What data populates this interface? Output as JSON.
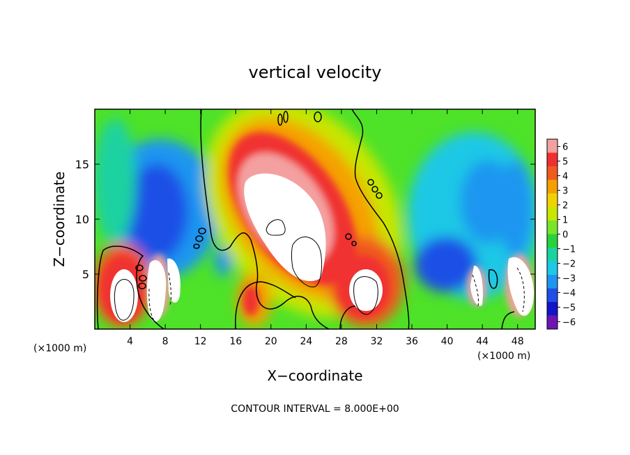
{
  "chart_data": {
    "type": "heatmap",
    "title": "vertical velocity",
    "xlabel": "X−coordinate",
    "ylabel": "Z−coordinate",
    "x_unit_left": "(×1000 m)",
    "x_unit_right": "(×1000 m)",
    "xlim": [
      0,
      50
    ],
    "ylim": [
      0,
      20
    ],
    "x_ticks": [
      4,
      8,
      12,
      16,
      20,
      24,
      28,
      32,
      36,
      40,
      44,
      48
    ],
    "y_ticks": [
      5,
      10,
      15
    ],
    "colorbar": {
      "min": -6,
      "max": 6,
      "tick_labels": [
        "6",
        "5",
        "4",
        "3",
        "2",
        "1",
        "0",
        "−1",
        "−2",
        "−3",
        "−4",
        "−5",
        "−6"
      ],
      "colors": [
        "#f4a0a0",
        "#f03030",
        "#f05a1e",
        "#f5a000",
        "#f0d200",
        "#c8e600",
        "#78e628",
        "#28d23c",
        "#1ed2a0",
        "#1ec8e6",
        "#1e96f0",
        "#1e50e6",
        "#1414c8",
        "#6e14b4"
      ]
    },
    "features": [
      {
        "kind": "updraft",
        "x": 3.0,
        "z": 2.9,
        "peak": 10
      },
      {
        "kind": "updraft",
        "x": 6.5,
        "z": 3.1,
        "peak": 9
      },
      {
        "kind": "updraft",
        "x": 9.0,
        "z": 3.5,
        "peak": 8
      },
      {
        "kind": "updraft",
        "x": 22.5,
        "z": 10.0,
        "peak": 14
      },
      {
        "kind": "updraft",
        "x": 30.5,
        "z": 3.3,
        "peak": 12
      },
      {
        "kind": "updraft",
        "x": 43.5,
        "z": 3.5,
        "peak": 8
      },
      {
        "kind": "updraft",
        "x": 48.0,
        "z": 4.0,
        "peak": 8
      },
      {
        "kind": "downdraft",
        "x": 8.5,
        "z": 10.0,
        "peak": -5
      },
      {
        "kind": "downdraft",
        "x": 43.0,
        "z": 10.0,
        "peak": -4
      },
      {
        "kind": "downdraft",
        "x": 39.0,
        "z": 5.0,
        "peak": -5
      }
    ],
    "annotation": "CONTOUR INTERVAL = 8.000E+00"
  }
}
